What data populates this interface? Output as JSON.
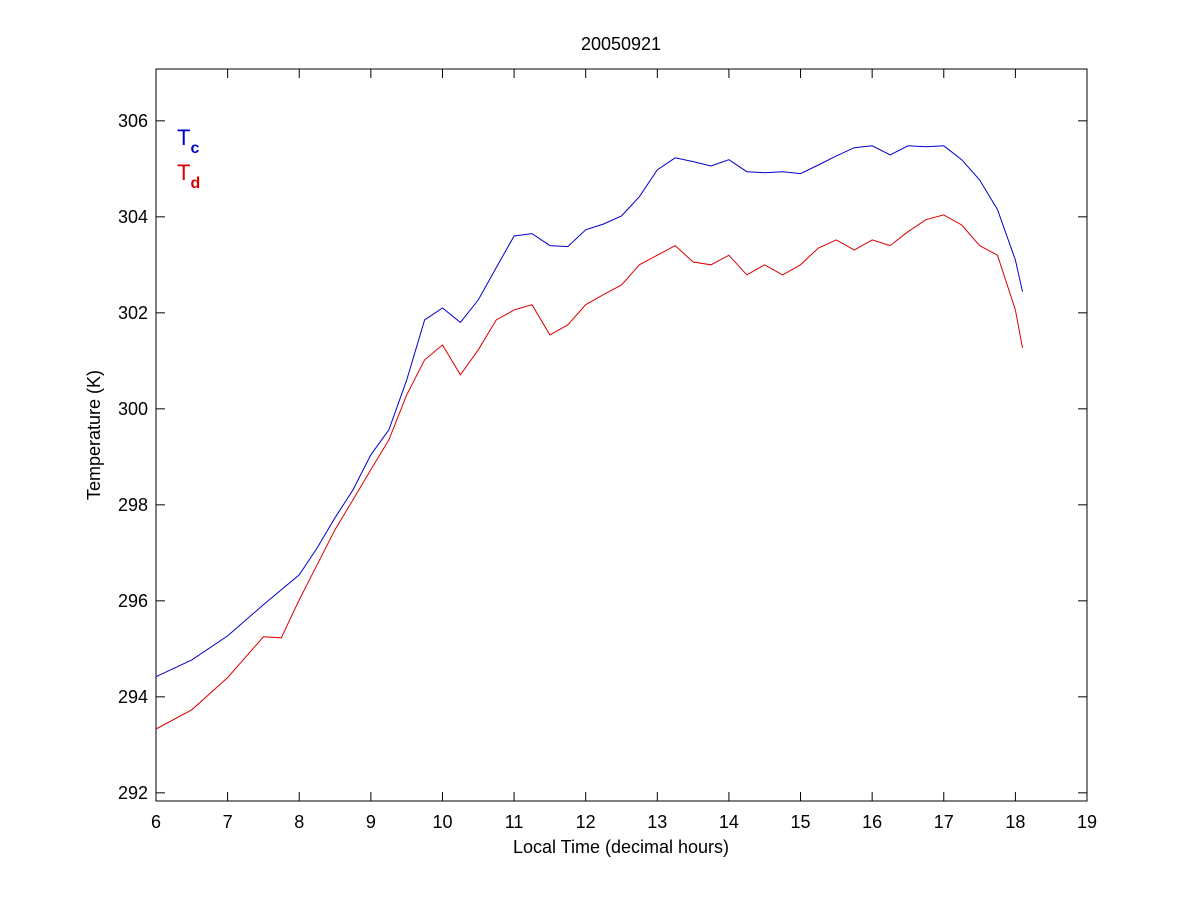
{
  "chart_data": {
    "type": "line",
    "title": "20050921",
    "xlabel": "Local Time (decimal hours)",
    "ylabel": "Temperature (K)",
    "xlim": [
      6,
      19
    ],
    "ylim": [
      291.83,
      307.08
    ],
    "xticks": [
      6,
      7,
      8,
      9,
      10,
      11,
      12,
      13,
      14,
      15,
      16,
      17,
      18,
      19
    ],
    "yticks": [
      292,
      294,
      296,
      298,
      300,
      302,
      304,
      306
    ],
    "grid": false,
    "legend_position": "top-left",
    "series": [
      {
        "name": "Tc",
        "label_main": "T",
        "label_sub": "c",
        "color": "#0000cc",
        "x": [
          6.0,
          6.5,
          7.0,
          7.5,
          7.75,
          8.0,
          8.25,
          8.5,
          8.75,
          9.0,
          9.25,
          9.5,
          9.75,
          10.0,
          10.25,
          10.5,
          10.75,
          11.0,
          11.25,
          11.5,
          11.75,
          12.0,
          12.25,
          12.5,
          12.75,
          13.0,
          13.25,
          13.5,
          13.75,
          14.0,
          14.25,
          14.5,
          14.75,
          15.0,
          15.25,
          15.5,
          15.75,
          16.0,
          16.25,
          16.5,
          16.75,
          17.0,
          17.25,
          17.5,
          17.75,
          18.0,
          18.1
        ],
        "y": [
          294.42,
          294.77,
          295.27,
          295.92,
          296.23,
          296.54,
          297.1,
          297.73,
          298.31,
          299.04,
          299.56,
          300.6,
          301.85,
          302.1,
          301.8,
          302.27,
          302.94,
          303.6,
          303.65,
          303.4,
          303.38,
          303.73,
          303.85,
          304.02,
          304.42,
          304.98,
          305.23,
          305.15,
          305.06,
          305.19,
          304.94,
          304.92,
          304.94,
          304.9,
          305.08,
          305.27,
          305.44,
          305.48,
          305.29,
          305.48,
          305.46,
          305.48,
          305.19,
          304.77,
          304.15,
          303.1,
          302.44
        ]
      },
      {
        "name": "Td",
        "label_main": "T",
        "label_sub": "d",
        "color": "#dd0000",
        "x": [
          6.0,
          6.5,
          7.0,
          7.5,
          7.75,
          8.0,
          8.25,
          8.5,
          8.75,
          9.0,
          9.25,
          9.5,
          9.75,
          10.0,
          10.25,
          10.5,
          10.75,
          11.0,
          11.25,
          11.5,
          11.75,
          12.0,
          12.25,
          12.5,
          12.75,
          13.0,
          13.25,
          13.5,
          13.75,
          14.0,
          14.25,
          14.5,
          14.75,
          15.0,
          15.25,
          15.5,
          15.75,
          16.0,
          16.25,
          16.5,
          16.75,
          17.0,
          17.25,
          17.5,
          17.75,
          18.0,
          18.1
        ],
        "y": [
          293.33,
          293.73,
          294.4,
          295.25,
          295.23,
          296.02,
          296.75,
          297.48,
          298.1,
          298.73,
          299.35,
          300.29,
          301.02,
          301.33,
          300.71,
          301.23,
          301.85,
          302.06,
          302.17,
          301.54,
          301.75,
          302.17,
          302.38,
          302.58,
          303.0,
          303.2,
          303.4,
          303.06,
          303.0,
          303.2,
          302.79,
          303.0,
          302.79,
          303.0,
          303.35,
          303.52,
          303.31,
          303.52,
          303.4,
          303.69,
          303.94,
          304.04,
          303.83,
          303.4,
          303.2,
          302.06,
          301.27
        ]
      }
    ]
  }
}
